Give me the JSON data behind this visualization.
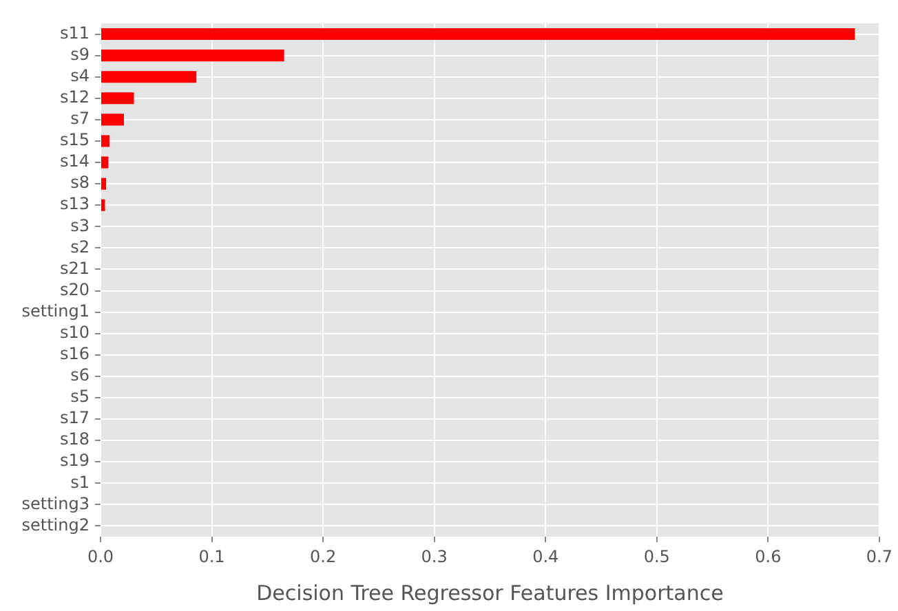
{
  "chart_data": {
    "type": "bar",
    "orientation": "horizontal",
    "categories": [
      "s11",
      "s9",
      "s4",
      "s12",
      "s7",
      "s15",
      "s14",
      "s8",
      "s13",
      "s3",
      "s2",
      "s21",
      "s20",
      "setting1",
      "s10",
      "s16",
      "s6",
      "s5",
      "s17",
      "s18",
      "s19",
      "s1",
      "setting3",
      "setting2"
    ],
    "values": [
      0.678,
      0.165,
      0.086,
      0.03,
      0.021,
      0.008,
      0.007,
      0.005,
      0.004,
      0,
      0,
      0,
      0,
      0,
      0,
      0,
      0,
      0,
      0,
      0,
      0,
      0,
      0,
      0
    ],
    "color": "#ff0000",
    "xlim": [
      0,
      0.7
    ],
    "xticks": [
      {
        "value": 0,
        "label": "0.0"
      },
      0.1,
      0.2,
      0.3,
      0.4,
      0.5,
      0.6,
      0.7
    ],
    "xlabel": "Decision Tree Regressor Features Importance",
    "grid": true
  }
}
